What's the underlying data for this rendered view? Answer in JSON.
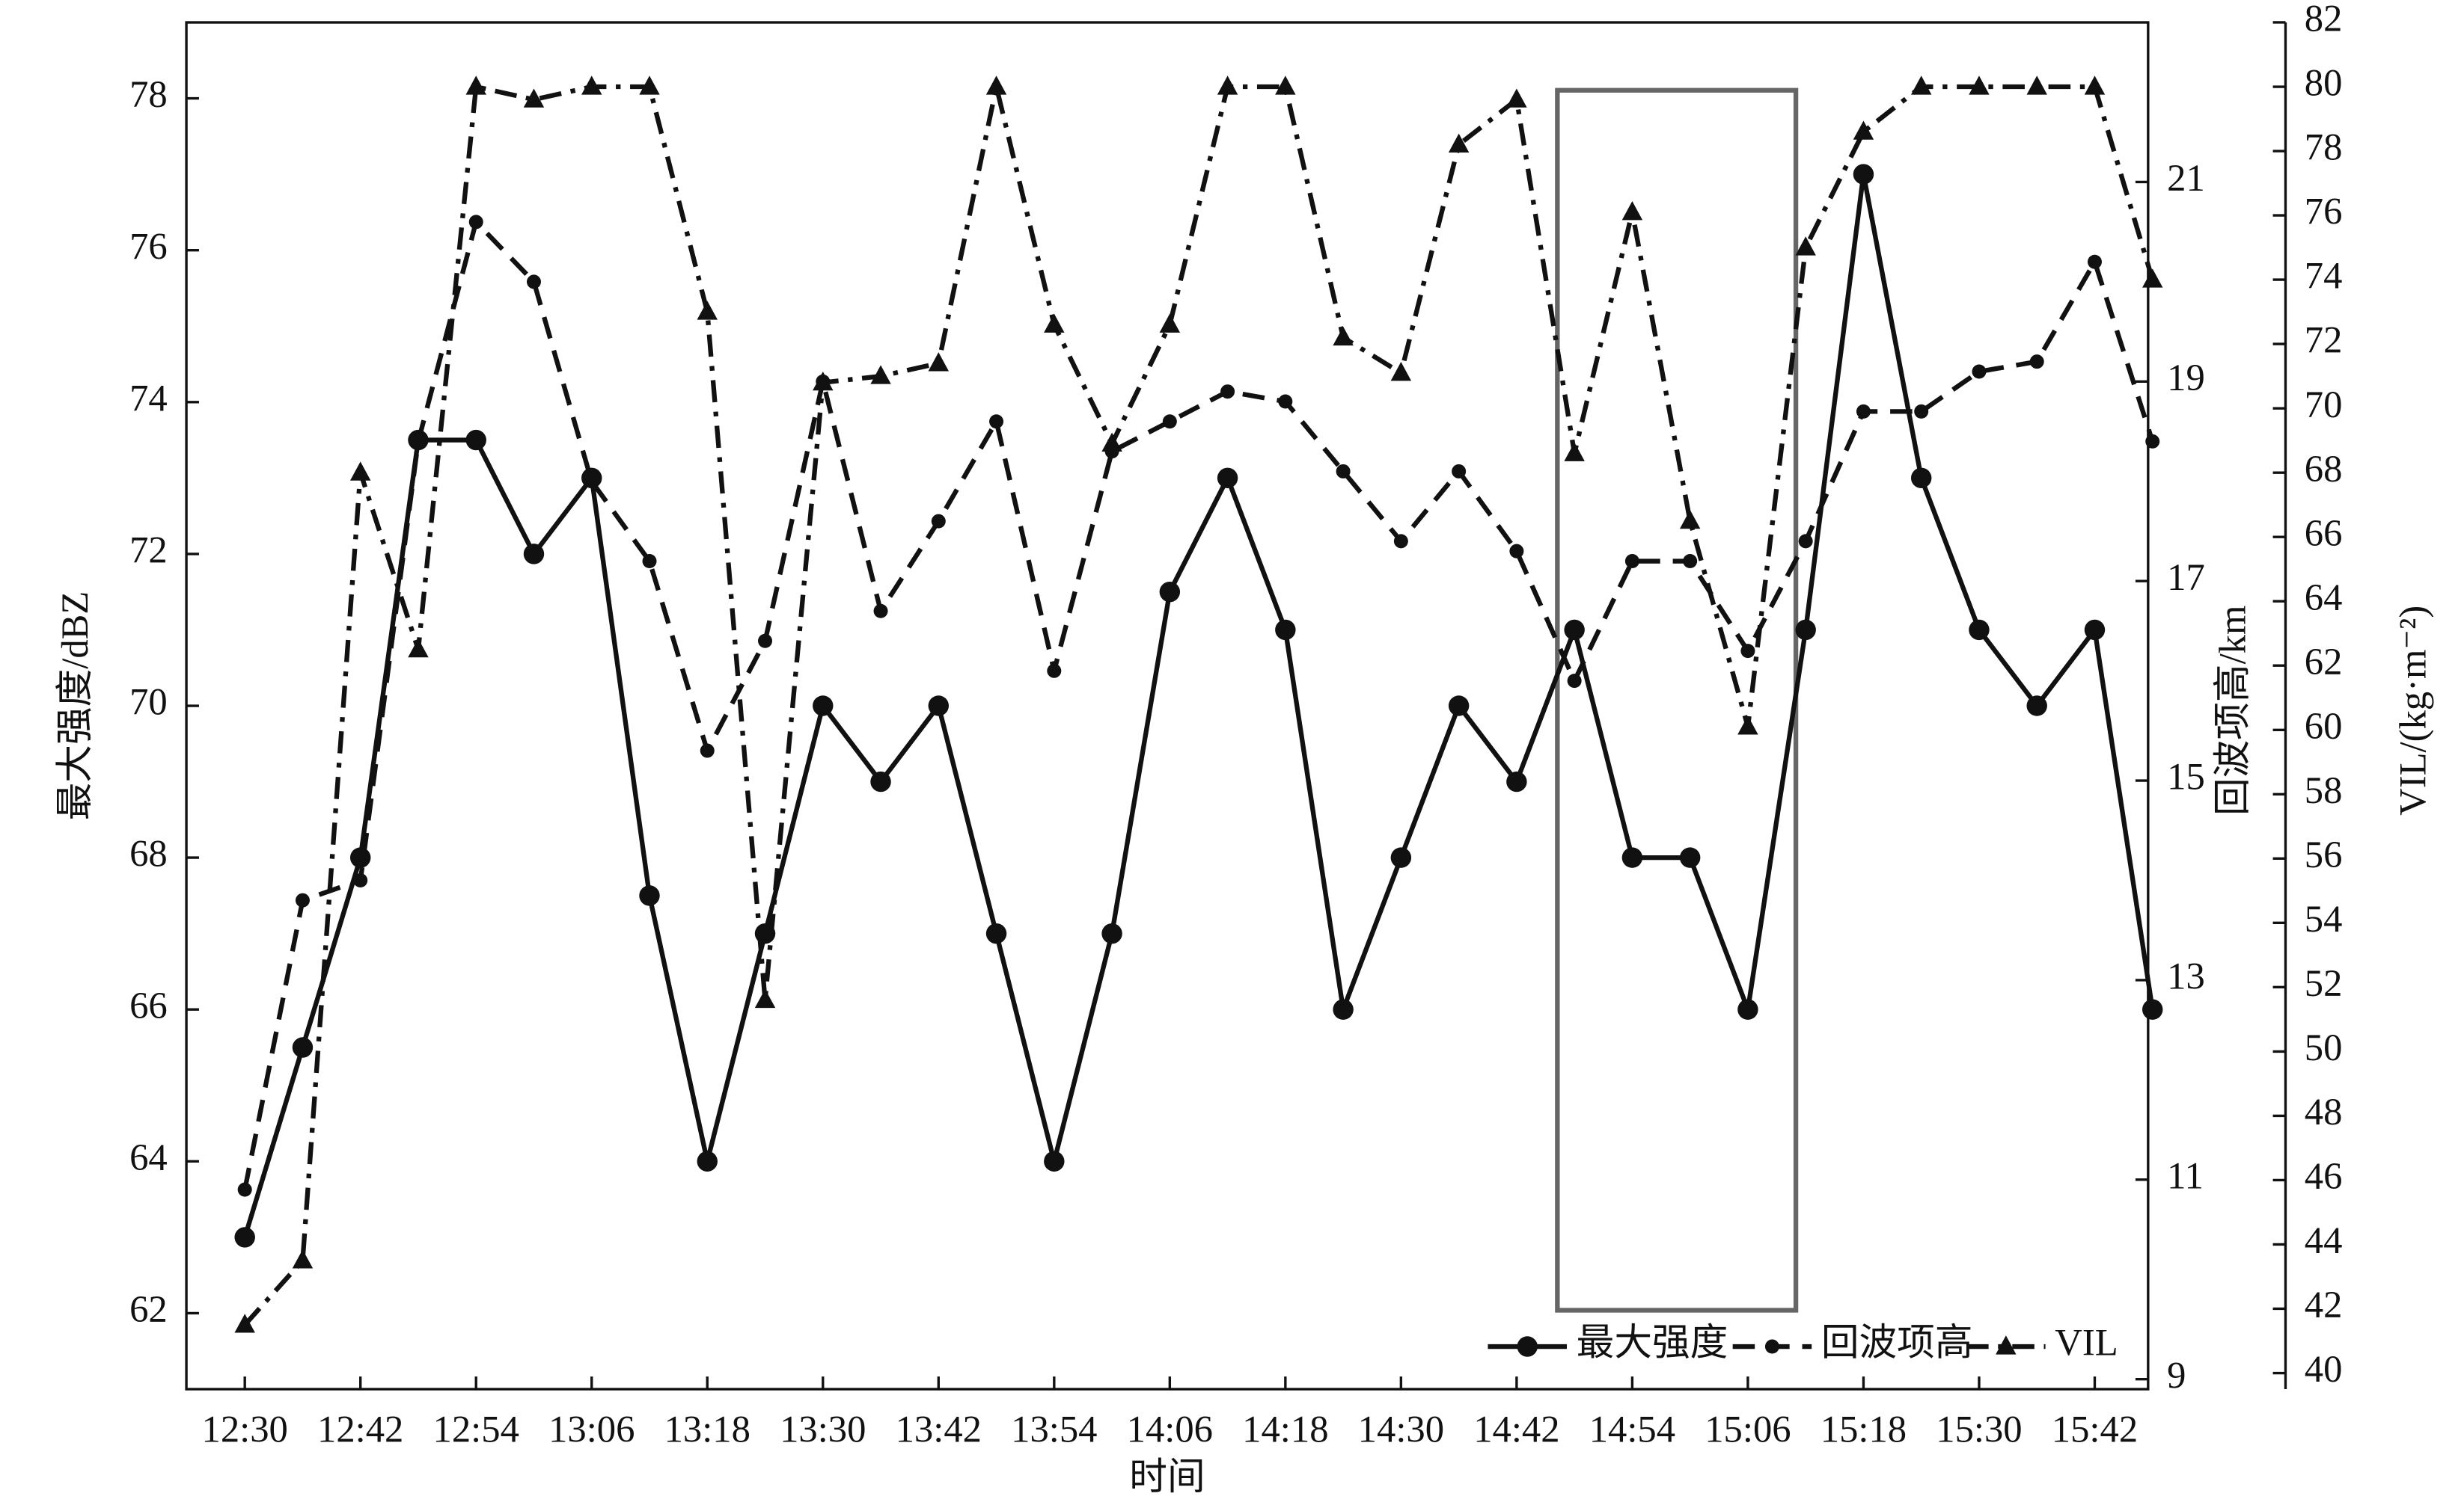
{
  "chart_data": {
    "type": "line",
    "x_label": "时间",
    "y_label": "最大强度/dBZ",
    "y2_label": "回波项高/km",
    "y3_label": "VIL/(kg·m⁻²)",
    "categories": [
      "12:30",
      null,
      "12:42",
      null,
      "12:54",
      null,
      "13:06",
      null,
      "13:18",
      null,
      "13:30",
      null,
      "13:42",
      null,
      "13:54",
      null,
      "14:06",
      null,
      "14:18",
      null,
      "14:30",
      null,
      "14:42",
      null,
      "14:54",
      null,
      "15:06",
      null,
      "15:18",
      null,
      "15:30",
      null,
      "15:42",
      null
    ],
    "ylim": [
      61,
      79
    ],
    "yticks": [
      62,
      64,
      66,
      68,
      70,
      72,
      74,
      76,
      78
    ],
    "y2lim": [
      8.9,
      22.6
    ],
    "y2ticks": [
      9,
      11,
      13,
      15,
      17,
      19,
      21
    ],
    "y3lim": [
      39.5,
      82
    ],
    "y3ticks": [
      40,
      42,
      44,
      46,
      48,
      50,
      52,
      54,
      56,
      58,
      60,
      62,
      64,
      66,
      68,
      70,
      72,
      74,
      76,
      78,
      80,
      82
    ],
    "legend": "lower right",
    "series": [
      {
        "name": "最大强度",
        "color": "#111111",
        "line_style": "solid",
        "marker": "circle",
        "axis": "y",
        "values": [
          63,
          65.5,
          68,
          73.5,
          73.5,
          72,
          73,
          67.5,
          64,
          67,
          70,
          69,
          70,
          67,
          64,
          67,
          71.5,
          73,
          71,
          66,
          68,
          70,
          69,
          71,
          68,
          68,
          66,
          71,
          77,
          73,
          71,
          70,
          71,
          66
        ]
      },
      {
        "name": "回波项高",
        "color": "#111111",
        "line_style": "dashed",
        "marker": "dot",
        "axis": "y2",
        "values": [
          10.9,
          13.8,
          14.0,
          18.4,
          20.6,
          20.0,
          18.0,
          17.2,
          15.3,
          16.4,
          19.0,
          16.7,
          17.6,
          18.6,
          16.1,
          18.3,
          18.6,
          18.9,
          18.8,
          18.1,
          17.4,
          18.1,
          17.3,
          16.0,
          17.2,
          17.2,
          16.3,
          17.4,
          18.7,
          18.7,
          19.1,
          19.2,
          20.2,
          18.4
        ]
      },
      {
        "name": "VIL",
        "color": "#111111",
        "line_style": "dashdot",
        "marker": "triangle",
        "axis": "y3",
        "values": [
          41.5,
          43.5,
          68,
          62.5,
          80,
          79.6,
          80,
          80,
          73,
          51.6,
          70.8,
          71,
          71.4,
          80,
          72.6,
          68.9,
          72.6,
          80,
          80,
          72.2,
          71.1,
          78.2,
          79.6,
          68.6,
          76.1,
          66.5,
          60.1,
          75,
          78.6,
          80,
          80,
          80,
          80,
          74
        ]
      }
    ]
  }
}
